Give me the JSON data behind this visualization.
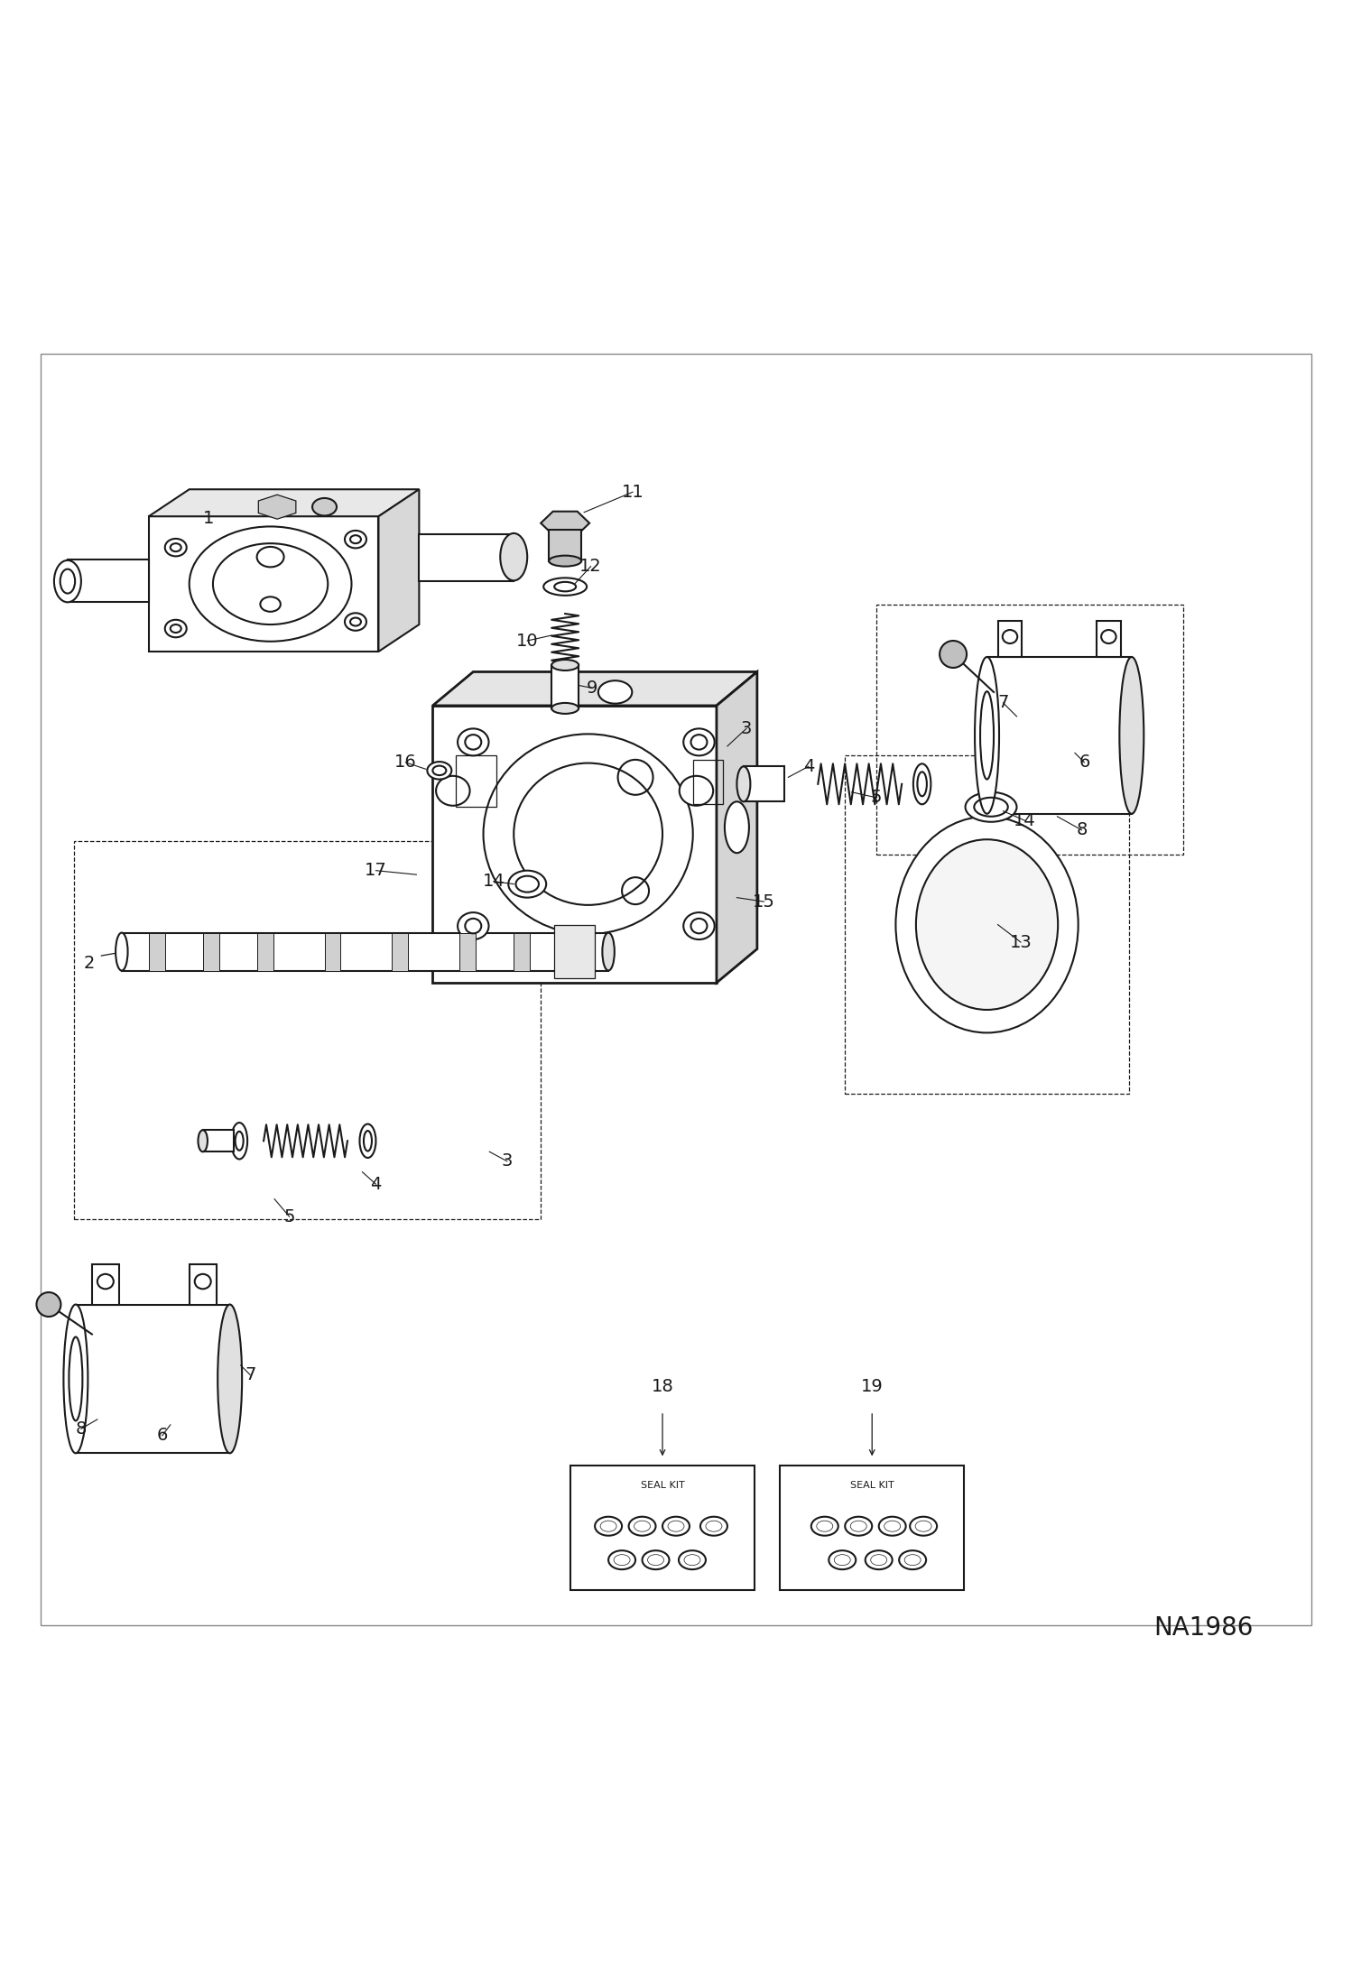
{
  "bg_color": "#ffffff",
  "line_color": "#1a1a1a",
  "watermark": "NA1986",
  "watermark_fontsize": 20,
  "border_color": "#888888",
  "label_fontsize": 14,
  "seal_kit_fontsize": 8,
  "lw_main": 1.5,
  "lw_thin": 0.9,
  "lw_thick": 2.0
}
